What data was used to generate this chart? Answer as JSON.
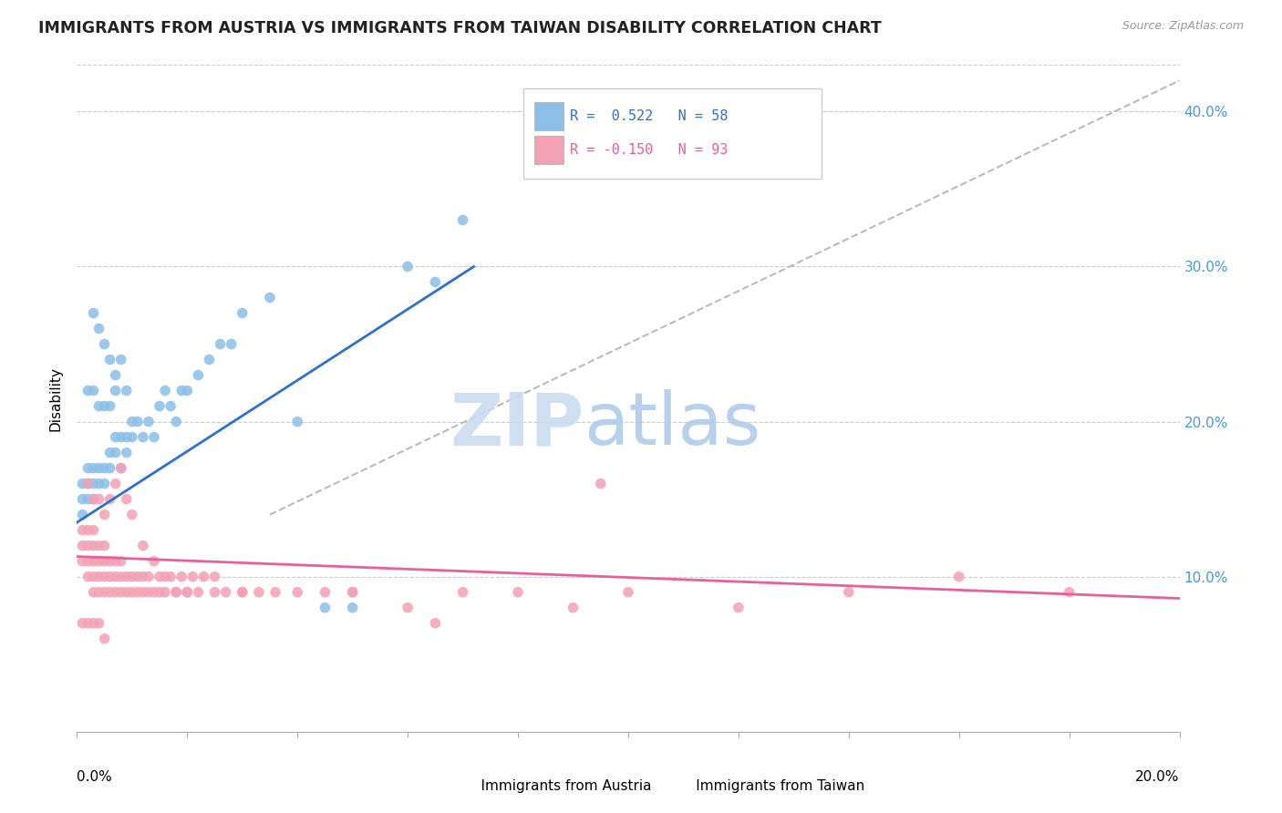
{
  "title": "IMMIGRANTS FROM AUSTRIA VS IMMIGRANTS FROM TAIWAN DISABILITY CORRELATION CHART",
  "source": "Source: ZipAtlas.com",
  "ylabel": "Disability",
  "austria_color": "#8BBFE8",
  "taiwan_color": "#F4A0B5",
  "austria_line_color": "#3070CC",
  "taiwan_line_color": "#E8609A",
  "dashed_line_color": "#BBBBBB",
  "xlim": [
    0.0,
    0.2
  ],
  "ylim": [
    0.0,
    0.43
  ],
  "ytick_values": [
    0.1,
    0.2,
    0.3,
    0.4
  ],
  "ytick_labels": [
    "10.0%",
    "20.0%",
    "30.0%",
    "40.0%"
  ],
  "austria_scatter_x": [
    0.001,
    0.001,
    0.001,
    0.002,
    0.002,
    0.002,
    0.002,
    0.003,
    0.003,
    0.003,
    0.003,
    0.004,
    0.004,
    0.004,
    0.005,
    0.005,
    0.005,
    0.006,
    0.006,
    0.006,
    0.007,
    0.007,
    0.007,
    0.008,
    0.008,
    0.009,
    0.009,
    0.01,
    0.01,
    0.011,
    0.012,
    0.013,
    0.014,
    0.015,
    0.016,
    0.017,
    0.018,
    0.019,
    0.02,
    0.022,
    0.024,
    0.026,
    0.028,
    0.03,
    0.035,
    0.04,
    0.045,
    0.05,
    0.003,
    0.004,
    0.005,
    0.006,
    0.007,
    0.008,
    0.009,
    0.06,
    0.065,
    0.07
  ],
  "austria_scatter_y": [
    0.14,
    0.15,
    0.16,
    0.15,
    0.16,
    0.17,
    0.22,
    0.15,
    0.16,
    0.17,
    0.22,
    0.16,
    0.17,
    0.21,
    0.16,
    0.17,
    0.21,
    0.17,
    0.18,
    0.21,
    0.18,
    0.19,
    0.22,
    0.17,
    0.19,
    0.18,
    0.19,
    0.19,
    0.2,
    0.2,
    0.19,
    0.2,
    0.19,
    0.21,
    0.22,
    0.21,
    0.2,
    0.22,
    0.22,
    0.23,
    0.24,
    0.25,
    0.25,
    0.27,
    0.28,
    0.2,
    0.08,
    0.08,
    0.27,
    0.26,
    0.25,
    0.24,
    0.23,
    0.24,
    0.22,
    0.3,
    0.29,
    0.33
  ],
  "taiwan_scatter_x": [
    0.001,
    0.001,
    0.001,
    0.002,
    0.002,
    0.002,
    0.002,
    0.003,
    0.003,
    0.003,
    0.003,
    0.003,
    0.004,
    0.004,
    0.004,
    0.004,
    0.005,
    0.005,
    0.005,
    0.005,
    0.006,
    0.006,
    0.006,
    0.007,
    0.007,
    0.007,
    0.008,
    0.008,
    0.008,
    0.009,
    0.009,
    0.01,
    0.01,
    0.011,
    0.011,
    0.012,
    0.012,
    0.013,
    0.013,
    0.014,
    0.015,
    0.015,
    0.016,
    0.017,
    0.018,
    0.019,
    0.02,
    0.021,
    0.022,
    0.023,
    0.025,
    0.027,
    0.03,
    0.033,
    0.036,
    0.04,
    0.045,
    0.05,
    0.002,
    0.003,
    0.004,
    0.005,
    0.006,
    0.007,
    0.008,
    0.009,
    0.01,
    0.012,
    0.014,
    0.016,
    0.018,
    0.02,
    0.025,
    0.03,
    0.06,
    0.065,
    0.08,
    0.09,
    0.1,
    0.12,
    0.14,
    0.16,
    0.18,
    0.001,
    0.002,
    0.003,
    0.004,
    0.005,
    0.05,
    0.07,
    0.095
  ],
  "taiwan_scatter_y": [
    0.11,
    0.12,
    0.13,
    0.1,
    0.11,
    0.12,
    0.13,
    0.09,
    0.1,
    0.11,
    0.12,
    0.13,
    0.09,
    0.1,
    0.11,
    0.12,
    0.09,
    0.1,
    0.11,
    0.12,
    0.09,
    0.1,
    0.11,
    0.09,
    0.1,
    0.11,
    0.09,
    0.1,
    0.11,
    0.09,
    0.1,
    0.09,
    0.1,
    0.09,
    0.1,
    0.09,
    0.1,
    0.09,
    0.1,
    0.09,
    0.09,
    0.1,
    0.09,
    0.1,
    0.09,
    0.1,
    0.09,
    0.1,
    0.09,
    0.1,
    0.09,
    0.09,
    0.09,
    0.09,
    0.09,
    0.09,
    0.09,
    0.09,
    0.16,
    0.15,
    0.15,
    0.14,
    0.15,
    0.16,
    0.17,
    0.15,
    0.14,
    0.12,
    0.11,
    0.1,
    0.09,
    0.09,
    0.1,
    0.09,
    0.08,
    0.07,
    0.09,
    0.08,
    0.09,
    0.08,
    0.09,
    0.1,
    0.09,
    0.07,
    0.07,
    0.07,
    0.07,
    0.06,
    0.09,
    0.09,
    0.16
  ],
  "austria_trend_x": [
    0.0,
    0.072
  ],
  "austria_trend_y": [
    0.135,
    0.3
  ],
  "taiwan_trend_x": [
    0.0,
    0.2
  ],
  "taiwan_trend_y": [
    0.113,
    0.086
  ]
}
